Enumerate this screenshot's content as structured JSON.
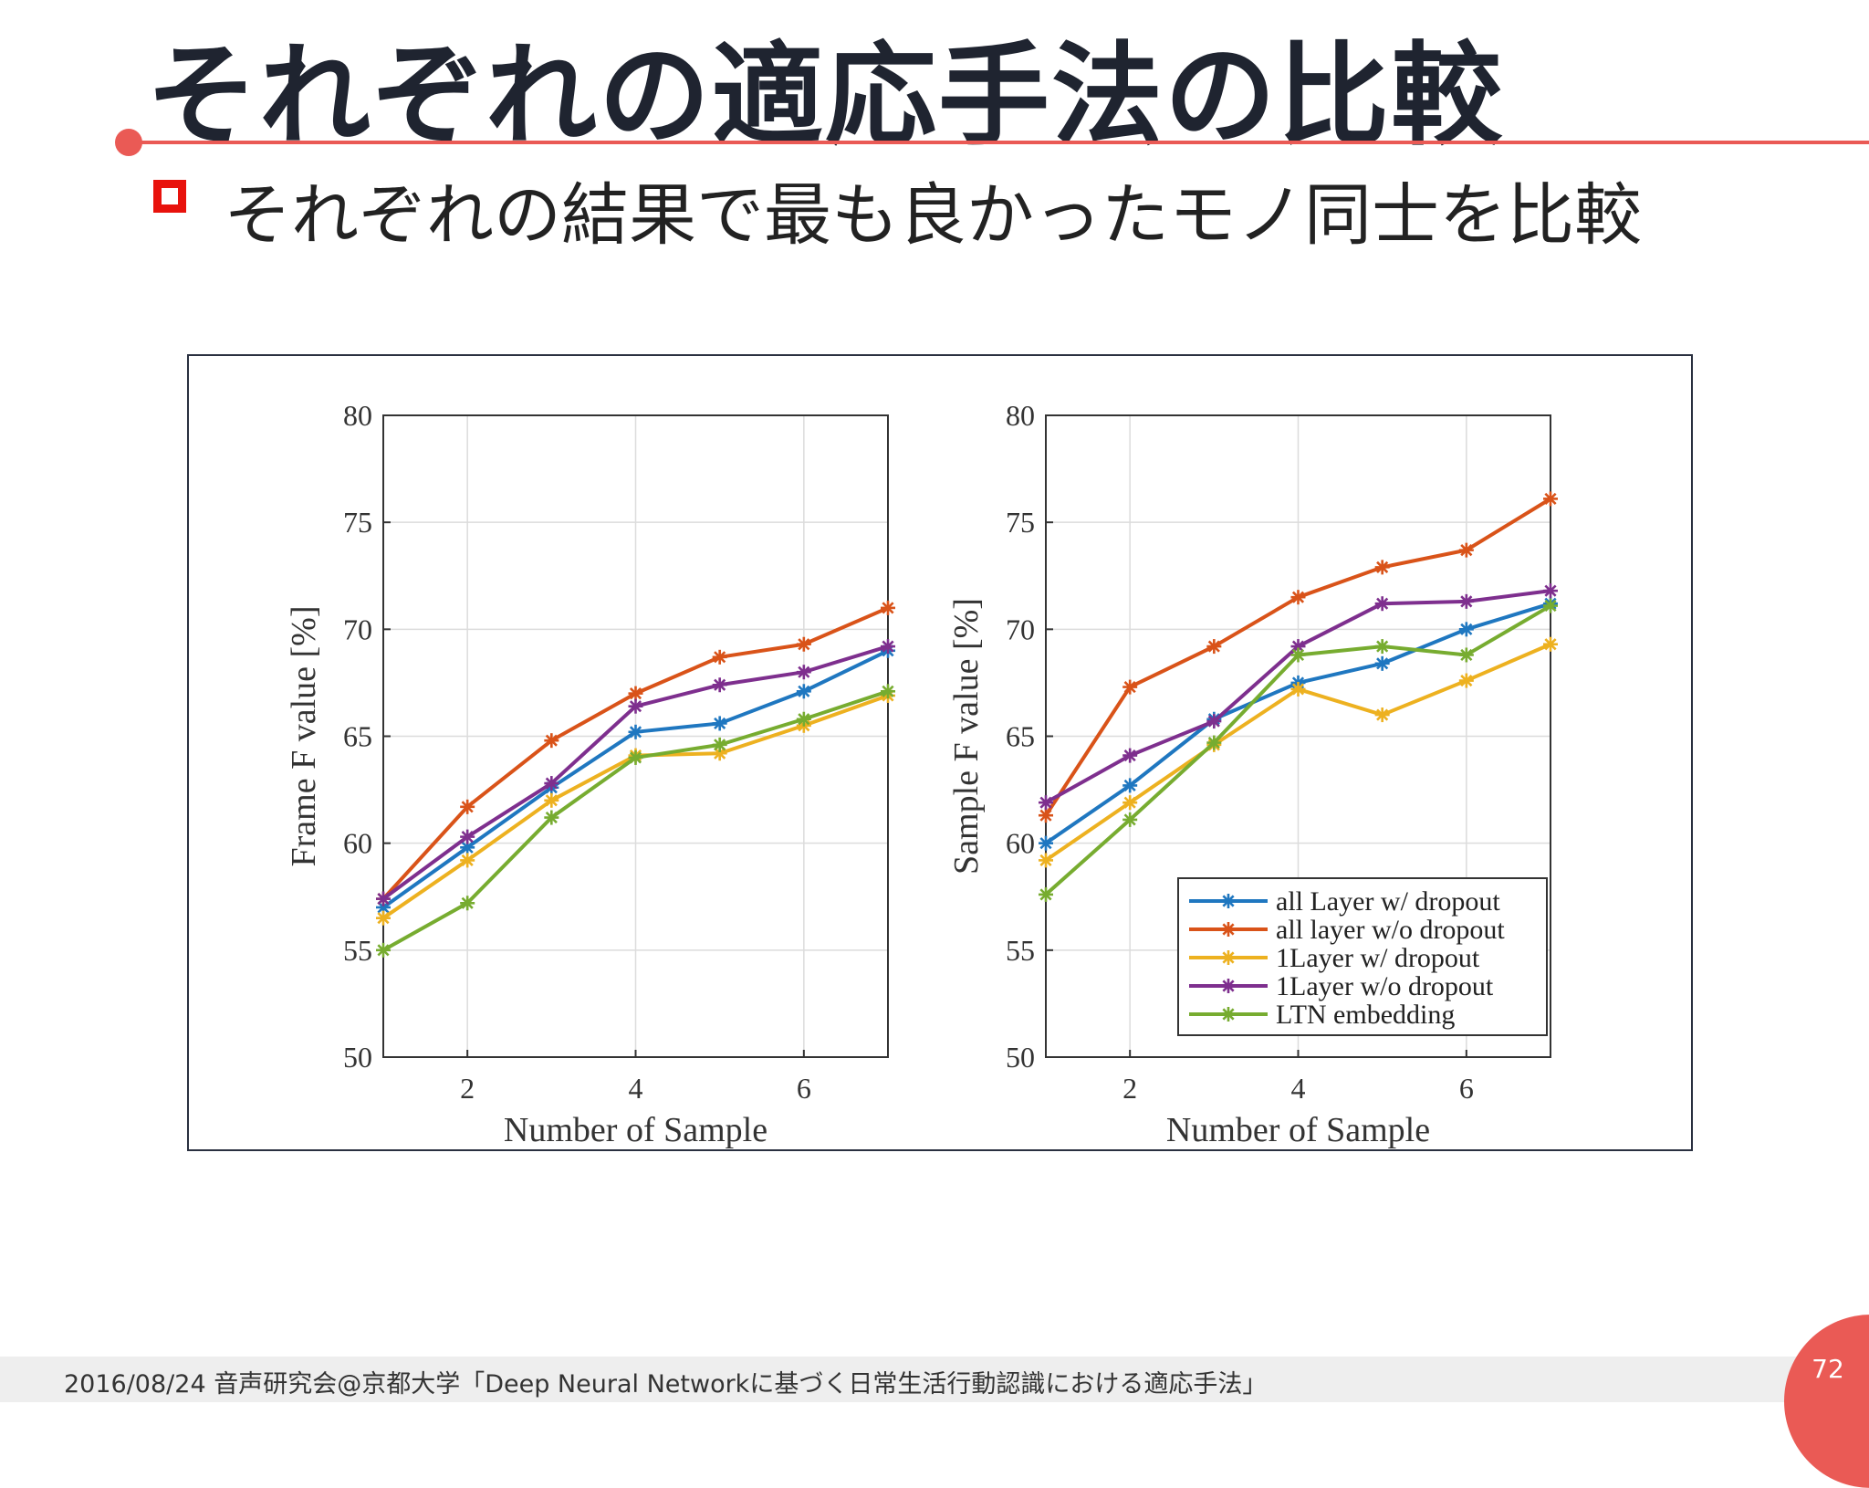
{
  "slide": {
    "title": "それぞれの適応手法の比較",
    "bullet": "それぞれの結果で最も良かったモノ同士を比較",
    "footer": "2016/08/24 音声研究会@京都大学「Deep Neural Networkに基づく日常生活行動認識における適応手法」",
    "page_number": "72",
    "accent_color": "#ea5a55",
    "bullet_color": "#e8120c"
  },
  "chart_data": [
    {
      "type": "line",
      "xlabel": "Number of Sample",
      "ylabel": "Frame F value [%]",
      "xlim": [
        1,
        7
      ],
      "ylim": [
        50,
        80
      ],
      "xticks": [
        "2",
        "4",
        "6"
      ],
      "yticks": [
        "50",
        "55",
        "60",
        "65",
        "70",
        "75",
        "80"
      ],
      "grid": true,
      "marker": "asterisk",
      "x": [
        1,
        2,
        3,
        4,
        5,
        6,
        7
      ],
      "series": [
        {
          "name": "all Layer w/ dropout",
          "color": "#1f77c0",
          "values": [
            57.0,
            59.8,
            62.6,
            65.2,
            65.6,
            67.1,
            69.0
          ]
        },
        {
          "name": "all layer w/o dropout",
          "color": "#d95319",
          "values": [
            57.4,
            61.7,
            64.8,
            67.0,
            68.7,
            69.3,
            71.0
          ]
        },
        {
          "name": "1Layer w/ dropout",
          "color": "#edb120",
          "values": [
            56.5,
            59.2,
            62.0,
            64.1,
            64.2,
            65.5,
            66.9
          ]
        },
        {
          "name": "1Layer w/o dropout",
          "color": "#7e2f8e",
          "values": [
            57.4,
            60.3,
            62.8,
            66.4,
            67.4,
            68.0,
            69.2
          ]
        },
        {
          "name": "LTN embedding",
          "color": "#77ac30",
          "values": [
            55.0,
            57.2,
            61.2,
            64.0,
            64.6,
            65.8,
            67.1
          ]
        }
      ]
    },
    {
      "type": "line",
      "xlabel": "Number of Sample",
      "ylabel": "Sample F value [%]",
      "xlim": [
        1,
        7
      ],
      "ylim": [
        50,
        80
      ],
      "xticks": [
        "2",
        "4",
        "6"
      ],
      "yticks": [
        "50",
        "55",
        "60",
        "65",
        "70",
        "75",
        "80"
      ],
      "grid": true,
      "marker": "asterisk",
      "legend_position": "bottom-right",
      "x": [
        1,
        2,
        3,
        4,
        5,
        6,
        7
      ],
      "series": [
        {
          "name": "all Layer w/ dropout",
          "color": "#1f77c0",
          "values": [
            60.0,
            62.7,
            65.8,
            67.5,
            68.4,
            70.0,
            71.2
          ]
        },
        {
          "name": "all layer w/o dropout",
          "color": "#d95319",
          "values": [
            61.3,
            67.3,
            69.2,
            71.5,
            72.9,
            73.7,
            76.1
          ]
        },
        {
          "name": "1Layer w/ dropout",
          "color": "#edb120",
          "values": [
            59.2,
            61.9,
            64.6,
            67.2,
            66.0,
            67.6,
            69.3
          ]
        },
        {
          "name": "1Layer w/o dropout",
          "color": "#7e2f8e",
          "values": [
            61.9,
            64.1,
            65.7,
            69.2,
            71.2,
            71.3,
            71.8
          ]
        },
        {
          "name": "LTN embedding",
          "color": "#77ac30",
          "values": [
            57.6,
            61.1,
            64.7,
            68.8,
            69.2,
            68.8,
            71.1
          ]
        }
      ]
    }
  ]
}
